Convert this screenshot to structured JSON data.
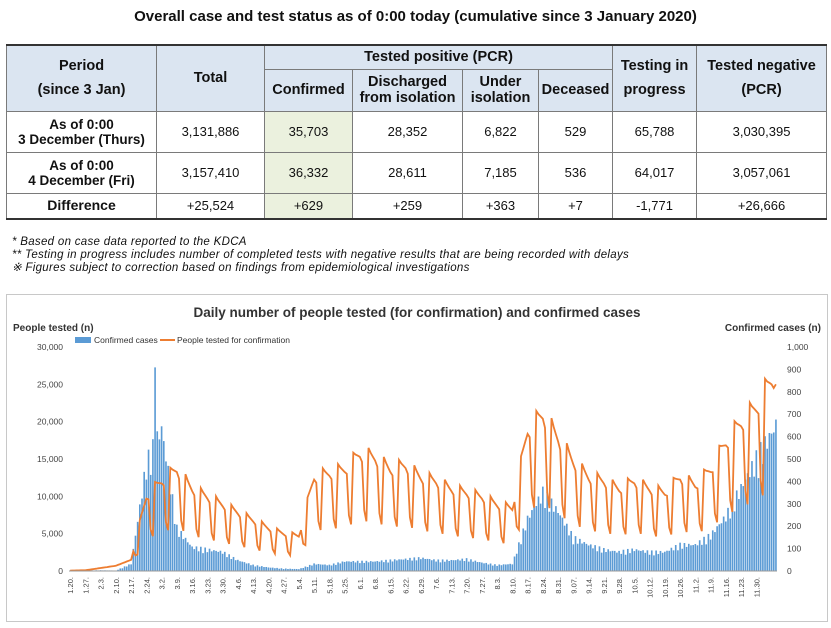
{
  "title": "Overall case and test status as of 0:00 today (cumulative since 3 January 2020)",
  "table": {
    "headers": {
      "period": [
        "Period",
        "(since 3 Jan)"
      ],
      "total": "Total",
      "positive_group": "Tested positive (PCR)",
      "confirmed": "Confirmed",
      "discharged": [
        "Discharged",
        "from isolation"
      ],
      "under": [
        "Under",
        "isolation"
      ],
      "deceased": "Deceased",
      "testing": [
        "Testing in",
        "progress"
      ],
      "negative": [
        "Tested negative",
        "(PCR)"
      ]
    },
    "rows": [
      {
        "period": [
          "As of 0:00",
          "3 December (Thurs)"
        ],
        "total": "3,131,886",
        "confirmed": "35,703",
        "discharged": "28,352",
        "under": "6,822",
        "deceased": "529",
        "testing": "65,788",
        "negative": "3,030,395"
      },
      {
        "period": [
          "As of 0:00",
          "4 December (Fri)"
        ],
        "total": "3,157,410",
        "confirmed": "36,332",
        "discharged": "28,611",
        "under": "7,185",
        "deceased": "536",
        "testing": "64,017",
        "negative": "3,057,061"
      },
      {
        "period": [
          "Difference"
        ],
        "total": "+25,524",
        "confirmed": "+629",
        "discharged": "+259",
        "under": "+363",
        "deceased": "+7",
        "testing": "-1,771",
        "negative": "+26,666"
      }
    ]
  },
  "notes": [
    "* Based on case data reported to the KDCA",
    "** Testing in progress includes number of completed tests with negative results that are being recorded with delays",
    "※ Figures subject to correction based on findings from epidemiological investigations"
  ],
  "chart_data": {
    "type": "bar+line",
    "title": "Daily number of people tested (for confirmation) and confirmed cases",
    "left_axis_label": "People tested (n)",
    "right_axis_label": "Confirmed cases (n)",
    "left_ticks": [
      "30,000",
      "25,000",
      "20,000",
      "15,000",
      "10,000",
      "5,000",
      "0"
    ],
    "right_ticks": [
      "1,000",
      "900",
      "800",
      "700",
      "600",
      "500",
      "400",
      "300",
      "200",
      "100",
      "0"
    ],
    "ylim_left": [
      0,
      30000
    ],
    "ylim_right": [
      0,
      1000
    ],
    "legend": [
      "Confirmed cases",
      "People tested for confirmation"
    ],
    "legend_position": "top-left",
    "colors": {
      "bars": "#5b9bd5",
      "line": "#ed7d31"
    },
    "x_tick_labels": [
      "1.20.",
      "1.27.",
      "2.3.",
      "2.10.",
      "2.17.",
      "2.24.",
      "3.2.",
      "3.9.",
      "3.16.",
      "3.23.",
      "3.30.",
      "4.6.",
      "4.13.",
      "4.20.",
      "4.27.",
      "5.4.",
      "5.11.",
      "5.18.",
      "5.25.",
      "6.1.",
      "6.8.",
      "6.15.",
      "6.22.",
      "6.29.",
      "7.6.",
      "7.13.",
      "7.20.",
      "7.27.",
      "8.3.",
      "8.10.",
      "8.17.",
      "8.24.",
      "8.31.",
      "9.07.",
      "9.14.",
      "9.21.",
      "9.28.",
      "10.5.",
      "10.12.",
      "10.19.",
      "10.26.",
      "11.2.",
      "11.9.",
      "11.16.",
      "11.23.",
      "11.30."
    ],
    "weekly": {
      "tests": [
        60,
        100,
        400,
        700,
        1500,
        9500,
        11500,
        13000,
        10500,
        9500,
        8500,
        7500,
        6500,
        5500,
        4800,
        4500,
        12000,
        12500,
        13000,
        15000,
        14500,
        13000,
        13500,
        12000,
        11500,
        10500,
        10000,
        9500,
        8500,
        8000,
        18000,
        20000,
        17000,
        14000,
        12000,
        11500,
        10500,
        11500,
        10500,
        10000,
        12000,
        11000,
        13000,
        16500,
        19000,
        21000,
        24500
      ],
      "confirmed": [
        2,
        2,
        3,
        2,
        30,
        450,
        600,
        180,
        100,
        90,
        80,
        45,
        25,
        15,
        10,
        8,
        30,
        25,
        40,
        40,
        40,
        45,
        50,
        55,
        45,
        45,
        50,
        35,
        25,
        30,
        220,
        330,
        250,
        140,
        110,
        90,
        80,
        90,
        80,
        80,
        110,
        110,
        150,
        230,
        350,
        470,
        580
      ]
    },
    "peaks": {
      "confirmed_max": 909,
      "tests_max": 25000
    }
  }
}
